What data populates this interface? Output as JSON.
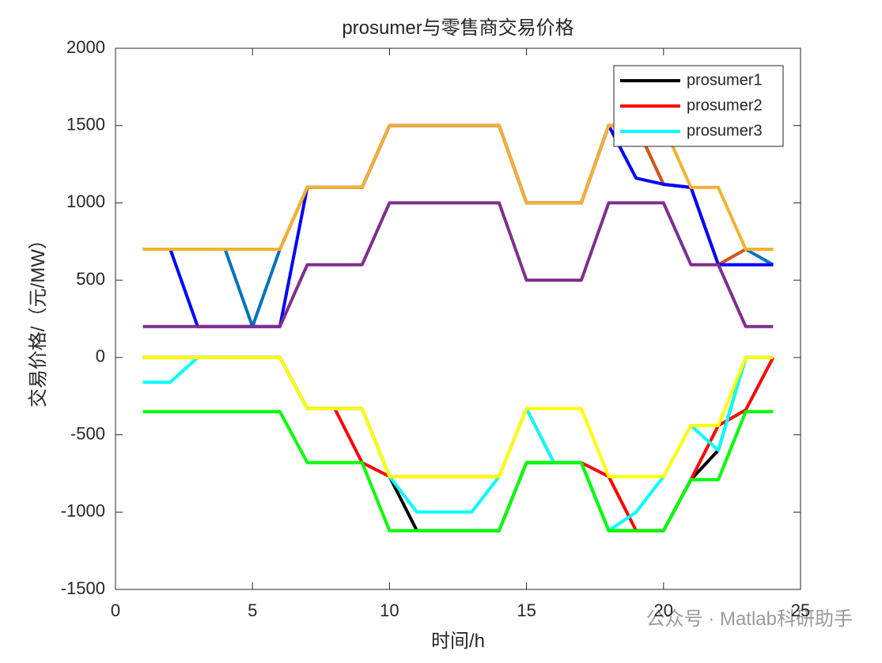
{
  "chart_data": {
    "type": "line",
    "title": "prosumer与零售商交易价格",
    "x_label": "时间/h",
    "y_label": "交易价格/（元/MW）",
    "watermark": "公众号 · Matlab科研助手",
    "x": [
      1,
      2,
      3,
      4,
      5,
      6,
      7,
      8,
      9,
      10,
      11,
      12,
      13,
      14,
      15,
      16,
      17,
      18,
      19,
      20,
      21,
      22,
      23,
      24
    ],
    "xlim": [
      0,
      25
    ],
    "xticks": [
      0,
      5,
      10,
      15,
      20,
      25
    ],
    "ylim": [
      -1500,
      2000
    ],
    "yticks": [
      -1500,
      -1000,
      -500,
      0,
      500,
      1000,
      1500,
      2000
    ],
    "legend": "top-right",
    "series": [
      {
        "name": "prosumer1",
        "color": "#000000",
        "values": [
          0,
          0,
          0,
          0,
          0,
          0,
          -330,
          -330,
          -330,
          -770,
          -1120,
          -1120,
          -1120,
          -1120,
          -680,
          -680,
          -680,
          -1120,
          -1120,
          -1120,
          -790,
          -600,
          0,
          0
        ]
      },
      {
        "name": "prosumer2",
        "color": "#ff0000",
        "values": [
          0,
          0,
          0,
          0,
          0,
          0,
          -330,
          -330,
          -680,
          -770,
          -770,
          -770,
          -770,
          -770,
          -330,
          -680,
          -680,
          -770,
          -1120,
          -1120,
          -790,
          -440,
          -340,
          0
        ]
      },
      {
        "name": "prosumer3",
        "color": "#00ffff",
        "values": [
          -160,
          -160,
          0,
          0,
          0,
          0,
          -330,
          -330,
          -330,
          -770,
          -1000,
          -1000,
          -1000,
          -770,
          -330,
          -680,
          -680,
          -1120,
          -1000,
          -770,
          -440,
          -600,
          0,
          0
        ]
      },
      {
        "color": "#0072bd",
        "values": [
          700,
          700,
          700,
          700,
          200,
          700,
          1100,
          1100,
          1100,
          1500,
          1500,
          1500,
          1500,
          1500,
          1000,
          1000,
          1000,
          1500,
          1500,
          1120,
          1100,
          600,
          700,
          600
        ]
      },
      {
        "color": "#d95319",
        "values": [
          700,
          700,
          700,
          700,
          700,
          700,
          1100,
          1100,
          1100,
          1500,
          1500,
          1500,
          1500,
          1500,
          1000,
          1000,
          1000,
          1500,
          1500,
          1120,
          1100,
          600,
          700,
          700
        ]
      },
      {
        "color": "#0000ff",
        "values": [
          700,
          700,
          200,
          200,
          200,
          200,
          1100,
          1100,
          1100,
          1500,
          1500,
          1500,
          1500,
          1500,
          1000,
          1000,
          1000,
          1500,
          1160,
          1120,
          1100,
          600,
          600,
          600
        ]
      },
      {
        "color": "#7e2f8e",
        "values": [
          200,
          200,
          200,
          200,
          200,
          200,
          600,
          600,
          600,
          1000,
          1000,
          1000,
          1000,
          1000,
          500,
          500,
          500,
          1000,
          1000,
          1000,
          600,
          600,
          200,
          200
        ]
      },
      {
        "color": "#f4b12f",
        "values": [
          700,
          700,
          700,
          700,
          700,
          700,
          1100,
          1100,
          1100,
          1500,
          1500,
          1500,
          1500,
          1500,
          1000,
          1000,
          1000,
          1500,
          1500,
          1500,
          1100,
          1100,
          700,
          700
        ]
      },
      {
        "color": "#00ff00",
        "values": [
          -350,
          -350,
          -350,
          -350,
          -350,
          -350,
          -680,
          -680,
          -680,
          -1120,
          -1120,
          -1120,
          -1120,
          -1120,
          -680,
          -680,
          -680,
          -1120,
          -1120,
          -1120,
          -790,
          -790,
          -350,
          -350
        ]
      },
      {
        "color": "#ffff00",
        "values": [
          0,
          0,
          0,
          0,
          0,
          0,
          -330,
          -330,
          -330,
          -770,
          -770,
          -770,
          -770,
          -770,
          -330,
          -330,
          -330,
          -770,
          -770,
          -770,
          -440,
          -440,
          0,
          0
        ]
      }
    ]
  }
}
